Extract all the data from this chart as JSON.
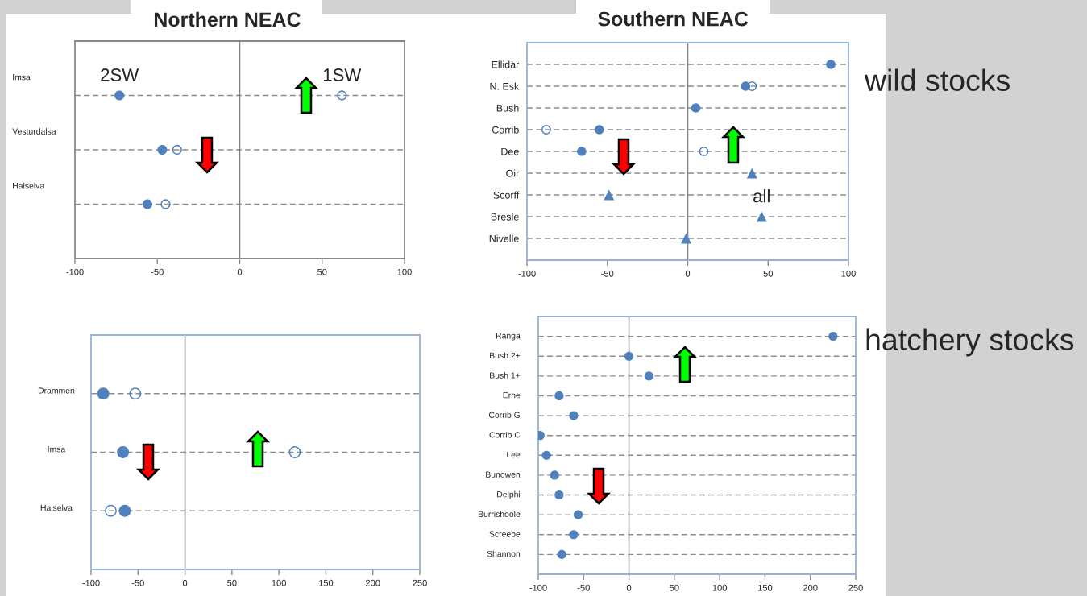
{
  "chart_data": [
    {
      "type": "scatter",
      "title": "Northern NEAC",
      "orientation": "horizontal",
      "categories": [
        "Imsa",
        "Vesturdalsa",
        "Halselva"
      ],
      "xlim": [
        -100,
        100
      ],
      "xticks": [
        -100,
        -50,
        0,
        50,
        100
      ],
      "grid": "y",
      "ref_lines": [
        {
          "axis": "x",
          "value": 0,
          "color": "#808080"
        }
      ],
      "series": [
        {
          "color": "#4f81bd",
          "marker": "circle",
          "values": [
            -73,
            -47,
            -56
          ]
        },
        {
          "color": "#4f81bd",
          "marker": "circle",
          "values": [
            62,
            -38,
            -45
          ]
        }
      ],
      "annotations": [
        {
          "text": "2SW",
          "x": -73,
          "y": "Imsa"
        },
        {
          "text": "1SW",
          "x": 62,
          "y": "Imsa"
        }
      ]
    },
    {
      "type": "scatter",
      "title": "Southern NEAC",
      "orientation": "horizontal",
      "categories": [
        "Ellidar",
        "N. Esk",
        "Bush",
        "Corrib",
        "Dee",
        "Oir",
        "Scorff",
        "Bresle",
        "Nivelle"
      ],
      "xlim": [
        -100,
        100
      ],
      "xticks": [
        -100,
        -50,
        0,
        50,
        100
      ],
      "grid": "y",
      "ref_lines": [
        {
          "axis": "x",
          "value": 0,
          "color": "#808080"
        }
      ],
      "series": [
        {
          "color": "#4f81bd",
          "marker": "circle",
          "values": [
            89,
            36,
            5,
            -55,
            -66,
            null,
            null,
            null,
            null
          ]
        },
        {
          "color": "#4f81bd",
          "marker": "circle",
          "values": [
            null,
            40,
            null,
            -88,
            10,
            null,
            null,
            null,
            null
          ]
        },
        {
          "color": "#4f81bd",
          "marker": "triangle",
          "values": [
            null,
            null,
            null,
            null,
            null,
            40,
            -49,
            46,
            -1
          ]
        }
      ],
      "annotations": [
        {
          "text": "all",
          "x": 46,
          "y": "Bresle"
        },
        "wild stocks"
      ]
    },
    {
      "type": "scatter",
      "orientation": "horizontal",
      "categories": [
        "Drammen",
        "Imsa",
        "Halselva"
      ],
      "xlim": [
        -100,
        250
      ],
      "xticks": [
        -100,
        -50,
        0,
        50,
        100,
        150,
        200,
        250
      ],
      "grid": "y",
      "ref_lines": [
        {
          "axis": "x",
          "value": 0,
          "color": "#808080"
        }
      ],
      "series": [
        {
          "color": "#4f81bd",
          "marker": "circle",
          "values": [
            -87,
            -66,
            -64
          ]
        },
        {
          "color": "#4f81bd",
          "marker": "circle",
          "values": [
            -53,
            117,
            -79
          ]
        }
      ]
    },
    {
      "type": "scatter",
      "orientation": "horizontal",
      "categories": [
        "Ranga",
        "Bush 2+",
        "Bush 1+",
        "Erne",
        "Corrib G",
        "Corrib C",
        "Lee",
        "Bunowen",
        "Delphi",
        "Burrishoole",
        "Screebe",
        "Shannon"
      ],
      "xlim": [
        -100,
        250
      ],
      "xticks": [
        -100,
        -50,
        0,
        50,
        100,
        150,
        200,
        250
      ],
      "grid": "y",
      "ref_lines": [
        {
          "axis": "x",
          "value": 0,
          "color": "#808080"
        }
      ],
      "series": [
        {
          "color": "#4f81bd",
          "marker": "circle",
          "values": [
            225,
            0,
            22,
            -77,
            -61,
            -98,
            -91,
            -82,
            -77,
            -56,
            -61,
            -74
          ]
        }
      ],
      "annotations": [
        "hatchery stocks"
      ]
    }
  ]
}
